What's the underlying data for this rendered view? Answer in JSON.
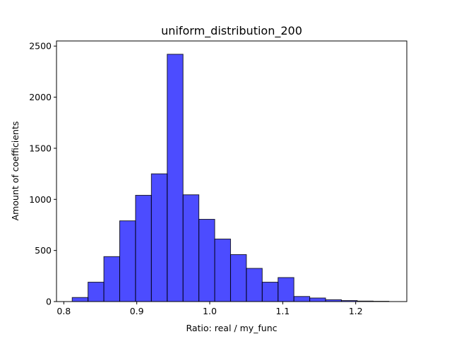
{
  "chart_data": {
    "type": "bar",
    "title": "uniform_distribution_200",
    "xlabel": "Ratio: real / my_func",
    "ylabel": "Amount of coefficients",
    "xlim": [
      0.79,
      1.27
    ],
    "ylim": [
      0,
      2550
    ],
    "xticks": [
      {
        "value": 0.8,
        "label": "0.8"
      },
      {
        "value": 0.9,
        "label": "0.9"
      },
      {
        "value": 1.0,
        "label": "1.0"
      },
      {
        "value": 1.1,
        "label": "1.1"
      },
      {
        "value": 1.2,
        "label": "1.2"
      }
    ],
    "yticks": [
      {
        "value": 0,
        "label": "0"
      },
      {
        "value": 500,
        "label": "500"
      },
      {
        "value": 1000,
        "label": "1000"
      },
      {
        "value": 1500,
        "label": "1500"
      },
      {
        "value": 2000,
        "label": "2000"
      },
      {
        "value": 2500,
        "label": "2500"
      }
    ],
    "bin_edges": [
      0.8115,
      0.8332,
      0.8549,
      0.8766,
      0.8983,
      0.92,
      0.9417,
      0.9634,
      0.9851,
      1.0068,
      1.0285,
      1.0502,
      1.0719,
      1.0936,
      1.1153,
      1.137,
      1.1587,
      1.1804,
      1.2021,
      1.2238,
      1.2455
    ],
    "values": [
      40,
      190,
      440,
      790,
      1040,
      1250,
      2420,
      1045,
      805,
      612,
      460,
      325,
      190,
      235,
      50,
      35,
      18,
      10,
      5,
      3
    ],
    "bar_color": "#0000ff",
    "bar_alpha": 0.7,
    "grid": false,
    "legend": "none"
  }
}
